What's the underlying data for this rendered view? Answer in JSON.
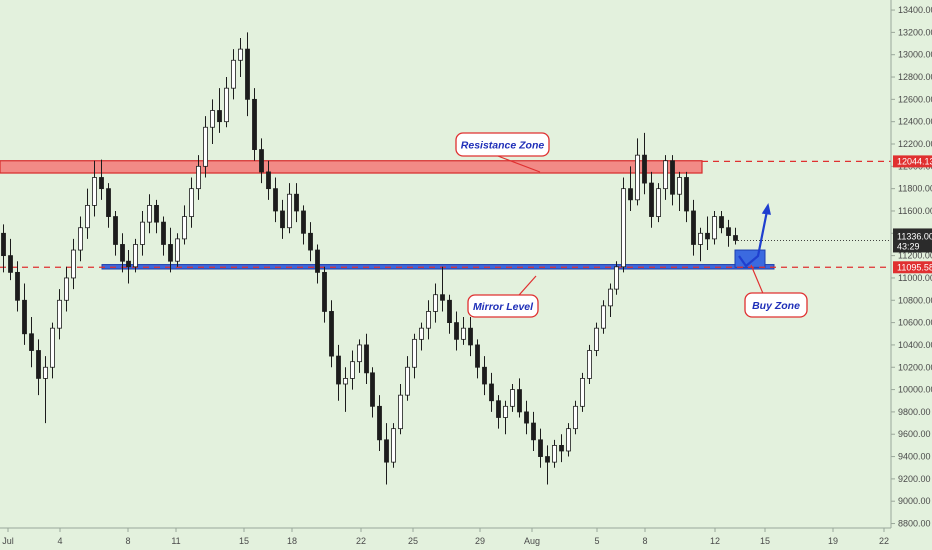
{
  "chart_data": {
    "type": "candlestick",
    "y_ticks": [
      "13400.00",
      "13200.00",
      "13000.00",
      "12800.00",
      "12600.00",
      "12400.00",
      "12200.00",
      "12000.00",
      "11800.00",
      "11600.00",
      "11400.00",
      "11200.00",
      "11000.00",
      "10800.00",
      "10600.00",
      "10400.00",
      "10200.00",
      "10000.00",
      "9800.00",
      "9600.00",
      "9400.00",
      "9200.00",
      "9000.00",
      "8800.00"
    ],
    "ylim": [
      8760,
      13490
    ],
    "x_ticks": [
      "Jul",
      "4",
      "8",
      "11",
      "15",
      "18",
      "22",
      "25",
      "29",
      "Aug",
      "5",
      "8",
      "12",
      "15",
      "19",
      "22"
    ],
    "annotations": {
      "resistance": {
        "label": "Resistance Zone",
        "low": 11940,
        "high": 12050
      },
      "mirror": {
        "label": "Mirror Level",
        "low": 11080,
        "high": 11120
      },
      "buy": {
        "label": "Buy Zone"
      }
    },
    "levels": {
      "resistance_price": "12044.13",
      "mirror_price": "11095.58",
      "current_price": "11336.00",
      "countdown": "43:29"
    },
    "candles_ohlc": [
      [
        11400,
        11480,
        11050,
        11200
      ],
      [
        11200,
        11350,
        10980,
        11050
      ],
      [
        11050,
        11150,
        10700,
        10800
      ],
      [
        10800,
        10950,
        10400,
        10500
      ],
      [
        10500,
        10650,
        10200,
        10350
      ],
      [
        10350,
        10450,
        9950,
        10100
      ],
      [
        10100,
        10300,
        9700,
        10200
      ],
      [
        10200,
        10600,
        10100,
        10550
      ],
      [
        10550,
        10900,
        10450,
        10800
      ],
      [
        10800,
        11100,
        10700,
        11000
      ],
      [
        11000,
        11350,
        10900,
        11250
      ],
      [
        11250,
        11550,
        11150,
        11450
      ],
      [
        11450,
        11800,
        11350,
        11650
      ],
      [
        11650,
        12050,
        11550,
        11900
      ],
      [
        11900,
        12060,
        11700,
        11800
      ],
      [
        11800,
        11850,
        11450,
        11550
      ],
      [
        11550,
        11600,
        11200,
        11300
      ],
      [
        11300,
        11400,
        11050,
        11150
      ],
      [
        11150,
        11250,
        10950,
        11100
      ],
      [
        11100,
        11350,
        11050,
        11300
      ],
      [
        11300,
        11600,
        11200,
        11500
      ],
      [
        11500,
        11750,
        11400,
        11650
      ],
      [
        11650,
        11700,
        11400,
        11500
      ],
      [
        11500,
        11550,
        11200,
        11300
      ],
      [
        11300,
        11450,
        11050,
        11150
      ],
      [
        11150,
        11400,
        11100,
        11350
      ],
      [
        11350,
        11650,
        11300,
        11550
      ],
      [
        11550,
        11900,
        11450,
        11800
      ],
      [
        11800,
        12100,
        11700,
        12000
      ],
      [
        12000,
        12450,
        11900,
        12350
      ],
      [
        12350,
        12600,
        12200,
        12500
      ],
      [
        12500,
        12700,
        12300,
        12400
      ],
      [
        12400,
        12800,
        12350,
        12700
      ],
      [
        12700,
        13050,
        12600,
        12950
      ],
      [
        12950,
        13150,
        12800,
        13050
      ],
      [
        13050,
        13200,
        12450,
        12600
      ],
      [
        12600,
        12700,
        12050,
        12150
      ],
      [
        12150,
        12250,
        11850,
        11950
      ],
      [
        11950,
        12050,
        11700,
        11800
      ],
      [
        11800,
        11900,
        11500,
        11600
      ],
      [
        11600,
        11700,
        11350,
        11450
      ],
      [
        11450,
        11850,
        11400,
        11750
      ],
      [
        11750,
        11850,
        11500,
        11600
      ],
      [
        11600,
        11650,
        11300,
        11400
      ],
      [
        11400,
        11500,
        11150,
        11250
      ],
      [
        11250,
        11300,
        10950,
        11050
      ],
      [
        11050,
        11100,
        10600,
        10700
      ],
      [
        10700,
        10800,
        10200,
        10300
      ],
      [
        10300,
        10400,
        9900,
        10050
      ],
      [
        10050,
        10200,
        9800,
        10100
      ],
      [
        10100,
        10350,
        10000,
        10250
      ],
      [
        10250,
        10450,
        10150,
        10400
      ],
      [
        10400,
        10500,
        10050,
        10150
      ],
      [
        10150,
        10200,
        9750,
        9850
      ],
      [
        9850,
        9950,
        9450,
        9550
      ],
      [
        9550,
        9700,
        9150,
        9350
      ],
      [
        9350,
        9700,
        9300,
        9650
      ],
      [
        9650,
        10050,
        9600,
        9950
      ],
      [
        9950,
        10300,
        9900,
        10200
      ],
      [
        10200,
        10500,
        10100,
        10450
      ],
      [
        10450,
        10600,
        10350,
        10550
      ],
      [
        10550,
        10800,
        10450,
        10700
      ],
      [
        10700,
        10950,
        10600,
        10850
      ],
      [
        10850,
        11100,
        10700,
        10800
      ],
      [
        10800,
        10850,
        10500,
        10600
      ],
      [
        10600,
        10700,
        10350,
        10450
      ],
      [
        10450,
        10650,
        10400,
        10550
      ],
      [
        10550,
        10650,
        10300,
        10400
      ],
      [
        10400,
        10450,
        10100,
        10200
      ],
      [
        10200,
        10300,
        9950,
        10050
      ],
      [
        10050,
        10150,
        9800,
        9900
      ],
      [
        9900,
        9950,
        9650,
        9750
      ],
      [
        9750,
        9900,
        9600,
        9850
      ],
      [
        9850,
        10050,
        9800,
        10000
      ],
      [
        10000,
        10100,
        9750,
        9800
      ],
      [
        9800,
        9900,
        9600,
        9700
      ],
      [
        9700,
        9800,
        9450,
        9550
      ],
      [
        9550,
        9650,
        9300,
        9400
      ],
      [
        9400,
        9500,
        9150,
        9350
      ],
      [
        9350,
        9550,
        9300,
        9500
      ],
      [
        9500,
        9600,
        9350,
        9450
      ],
      [
        9450,
        9700,
        9400,
        9650
      ],
      [
        9650,
        9900,
        9600,
        9850
      ],
      [
        9850,
        10150,
        9800,
        10100
      ],
      [
        10100,
        10400,
        10050,
        10350
      ],
      [
        10350,
        10600,
        10300,
        10550
      ],
      [
        10550,
        10800,
        10500,
        10750
      ],
      [
        10750,
        10950,
        10650,
        10900
      ],
      [
        10900,
        11150,
        10850,
        11100
      ],
      [
        11100,
        11900,
        11050,
        11800
      ],
      [
        11800,
        12000,
        11600,
        11700
      ],
      [
        11700,
        12250,
        11650,
        12100
      ],
      [
        12100,
        12300,
        11750,
        11850
      ],
      [
        11850,
        11950,
        11450,
        11550
      ],
      [
        11550,
        11850,
        11500,
        11800
      ],
      [
        11800,
        12100,
        11700,
        12050
      ],
      [
        12050,
        12100,
        11650,
        11750
      ],
      [
        11750,
        11950,
        11600,
        11900
      ],
      [
        11900,
        11950,
        11500,
        11600
      ],
      [
        11600,
        11700,
        11200,
        11300
      ],
      [
        11300,
        11450,
        11150,
        11400
      ],
      [
        11400,
        11550,
        11250,
        11350
      ],
      [
        11350,
        11600,
        11300,
        11550
      ],
      [
        11550,
        11600,
        11400,
        11450
      ],
      [
        11450,
        11520,
        11280,
        11380
      ],
      [
        11380,
        11450,
        11300,
        11336
      ]
    ]
  }
}
